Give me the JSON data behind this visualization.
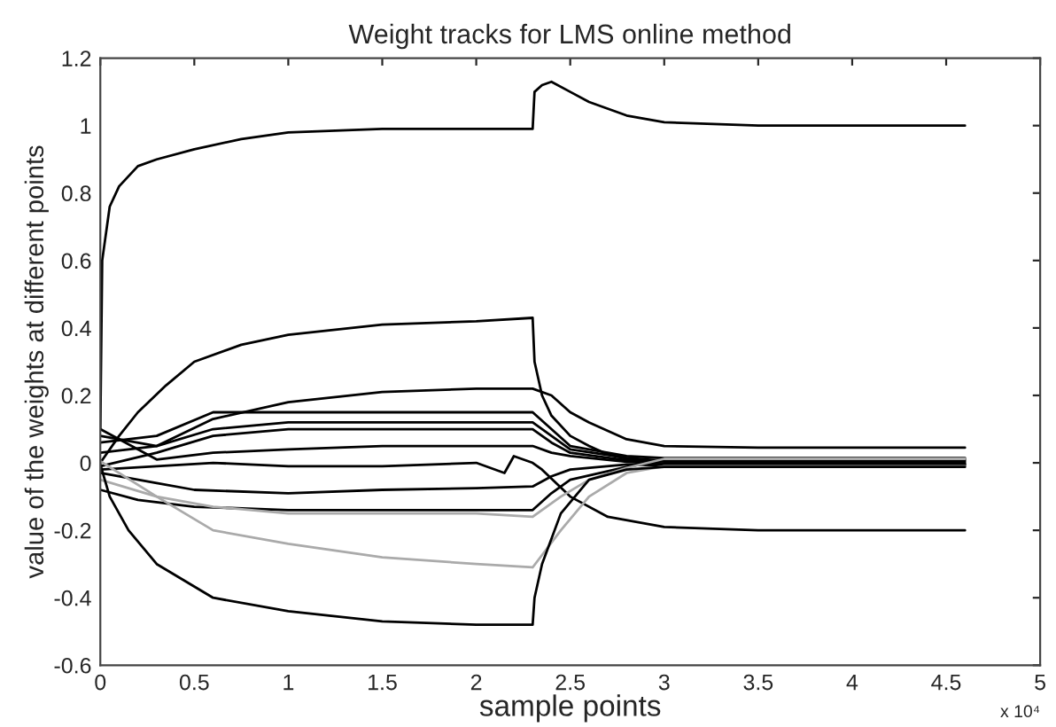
{
  "chart_data": {
    "type": "line",
    "title": "Weight tracks for LMS online method",
    "xlabel": "sample points",
    "ylabel": "value of the weights at different points",
    "annotations": [
      "x 10⁴"
    ],
    "xlim": [
      0,
      5
    ],
    "xticks": [
      0,
      0.5,
      1,
      1.5,
      2,
      2.5,
      3,
      3.5,
      4,
      4.5,
      5
    ],
    "ylim": [
      -0.6,
      1.2
    ],
    "yticks": [
      -0.6,
      -0.4,
      -0.2,
      0,
      0.2,
      0.4,
      0.6,
      0.8,
      1,
      1.2
    ],
    "series": [
      {
        "color": "#000000",
        "x": [
          0,
          0.01,
          0.05,
          0.1,
          0.2,
          0.3,
          0.5,
          0.75,
          1.0,
          1.5,
          2.0,
          2.3,
          2.31,
          2.35,
          2.4,
          2.5,
          2.6,
          2.8,
          3.0,
          3.5,
          4.0,
          4.6
        ],
        "values": [
          0.1,
          0.6,
          0.76,
          0.82,
          0.88,
          0.9,
          0.93,
          0.96,
          0.98,
          0.99,
          0.99,
          0.99,
          1.1,
          1.12,
          1.13,
          1.1,
          1.07,
          1.03,
          1.01,
          1.0,
          1.0,
          1.0
        ]
      },
      {
        "color": "#000000",
        "x": [
          0,
          0.1,
          0.2,
          0.35,
          0.5,
          0.75,
          1.0,
          1.5,
          2.0,
          2.3,
          2.31,
          2.35,
          2.4,
          2.5,
          2.6,
          2.7,
          2.8,
          3.0,
          3.5,
          4.6
        ],
        "values": [
          0.0,
          0.08,
          0.15,
          0.23,
          0.3,
          0.35,
          0.38,
          0.41,
          0.42,
          0.43,
          0.3,
          0.2,
          0.14,
          0.08,
          0.05,
          0.025,
          0.012,
          0.004,
          0.002,
          0.002
        ]
      },
      {
        "color": "#000000",
        "x": [
          0,
          0.3,
          0.6,
          1.0,
          1.5,
          2.0,
          2.3,
          2.4,
          2.5,
          2.6,
          2.8,
          3.0,
          3.5,
          4.6
        ],
        "values": [
          0.03,
          0.05,
          0.13,
          0.18,
          0.21,
          0.22,
          0.22,
          0.2,
          0.15,
          0.12,
          0.07,
          0.05,
          0.045,
          0.045
        ]
      },
      {
        "color": "#000000",
        "x": [
          0,
          0.3,
          0.6,
          1.0,
          1.5,
          2.0,
          2.3,
          2.4,
          2.5,
          2.8,
          3.0,
          4.6
        ],
        "values": [
          0.06,
          0.08,
          0.15,
          0.15,
          0.15,
          0.15,
          0.15,
          0.1,
          0.05,
          0.02,
          0.014,
          0.014
        ]
      },
      {
        "color": "#000000",
        "x": [
          0,
          0.3,
          0.6,
          1.0,
          1.5,
          2.0,
          2.3,
          2.4,
          2.5,
          2.8,
          3.0,
          4.6
        ],
        "values": [
          0.08,
          0.05,
          0.1,
          0.12,
          0.12,
          0.12,
          0.12,
          0.08,
          0.04,
          0.015,
          0.006,
          0.006
        ]
      },
      {
        "color": "#000000",
        "x": [
          0,
          0.3,
          0.6,
          1.0,
          1.5,
          2.0,
          2.3,
          2.4,
          2.5,
          2.8,
          3.0,
          4.6
        ],
        "values": [
          -0.01,
          0.03,
          0.08,
          0.1,
          0.1,
          0.1,
          0.1,
          0.06,
          0.03,
          0.008,
          -0.002,
          -0.003
        ]
      },
      {
        "color": "#000000",
        "x": [
          0,
          0.3,
          0.6,
          1.0,
          1.5,
          2.0,
          2.3,
          2.4,
          2.5,
          2.8,
          3.0,
          4.6
        ],
        "values": [
          0.1,
          0.01,
          0.03,
          0.04,
          0.05,
          0.05,
          0.05,
          0.03,
          0.02,
          0.003,
          -0.004,
          -0.004
        ]
      },
      {
        "color": "#000000",
        "x": [
          0,
          0.3,
          0.6,
          1.0,
          1.5,
          2.0,
          2.15,
          2.2,
          2.3,
          2.35,
          2.5,
          2.7,
          3.0,
          3.5,
          4.6
        ],
        "values": [
          -0.02,
          -0.01,
          0.0,
          -0.01,
          -0.01,
          0.0,
          -0.03,
          0.02,
          0.0,
          -0.02,
          -0.1,
          -0.16,
          -0.19,
          -0.2,
          -0.2
        ]
      },
      {
        "color": "#000000",
        "x": [
          0,
          0.3,
          0.5,
          1.0,
          1.5,
          2.0,
          2.3,
          2.4,
          2.5,
          2.8,
          3.0,
          4.6
        ],
        "values": [
          -0.03,
          -0.06,
          -0.08,
          -0.09,
          -0.08,
          -0.075,
          -0.07,
          -0.04,
          -0.02,
          -0.005,
          -0.008,
          -0.008
        ]
      },
      {
        "color": "#000000",
        "x": [
          0,
          0.2,
          0.5,
          1.0,
          1.5,
          2.0,
          2.3,
          2.4,
          2.5,
          2.8,
          3.0,
          4.6
        ],
        "values": [
          -0.08,
          -0.11,
          -0.13,
          -0.14,
          -0.14,
          -0.14,
          -0.14,
          -0.09,
          -0.05,
          -0.012,
          0.008,
          0.01
        ]
      },
      {
        "color": "#aaaaaa",
        "x": [
          0,
          0.3,
          0.6,
          1.0,
          1.5,
          2.0,
          2.3,
          2.45,
          2.6,
          2.8,
          3.0,
          4.6
        ],
        "values": [
          0.005,
          -0.1,
          -0.2,
          -0.24,
          -0.28,
          -0.3,
          -0.31,
          -0.2,
          -0.1,
          -0.03,
          -0.01,
          -0.01
        ]
      },
      {
        "color": "#aaaaaa",
        "x": [
          0,
          0.3,
          0.6,
          1.0,
          1.5,
          2.0,
          2.3,
          2.45,
          2.6,
          2.8,
          3.0,
          4.6
        ],
        "values": [
          -0.05,
          -0.1,
          -0.13,
          -0.15,
          -0.15,
          -0.15,
          -0.16,
          -0.1,
          -0.05,
          -0.015,
          0.012,
          0.012
        ]
      },
      {
        "color": "#000000",
        "x": [
          0,
          0.05,
          0.15,
          0.3,
          0.6,
          1.0,
          1.5,
          2.0,
          2.3,
          2.31,
          2.35,
          2.45,
          2.6,
          2.8,
          3.0,
          4.6
        ],
        "values": [
          -0.005,
          -0.1,
          -0.2,
          -0.3,
          -0.4,
          -0.44,
          -0.47,
          -0.48,
          -0.48,
          -0.4,
          -0.3,
          -0.15,
          -0.05,
          -0.02,
          -0.012,
          -0.012
        ]
      }
    ]
  }
}
